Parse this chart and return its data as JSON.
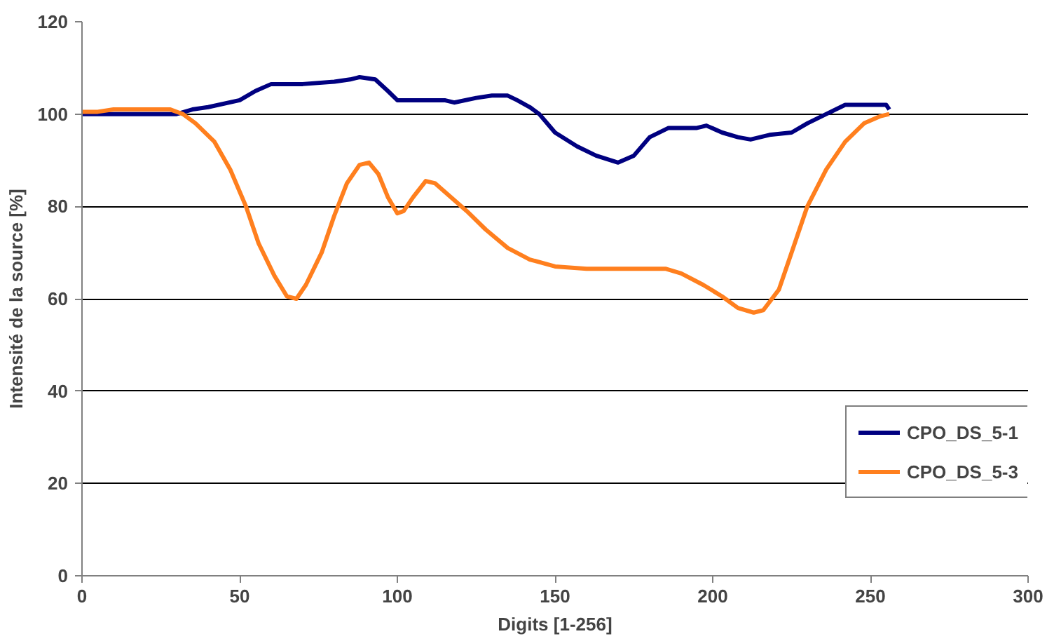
{
  "chart_data": {
    "type": "line",
    "xlabel": "Digits [1-256]",
    "ylabel": "Intensité de la source [%]",
    "xlim": [
      0,
      300
    ],
    "xticks": [
      0,
      50,
      100,
      150,
      200,
      250,
      300
    ],
    "ylim": [
      0,
      120
    ],
    "yticks": [
      0,
      20,
      40,
      60,
      80,
      100,
      120
    ],
    "grid": "y",
    "legend": "right",
    "line_style": "solid",
    "marker": "none",
    "series": [
      {
        "name": "CPO_DS_5-1",
        "color": "#000080",
        "x": [
          0,
          10,
          20,
          30,
          35,
          40,
          50,
          55,
          60,
          70,
          80,
          85,
          88,
          93,
          97,
          100,
          110,
          115,
          118,
          125,
          130,
          135,
          138,
          142,
          145,
          150,
          157,
          163,
          170,
          175,
          180,
          186,
          195,
          198,
          203,
          208,
          212,
          218,
          225,
          230,
          236,
          242,
          250,
          255,
          256
        ],
        "values": [
          100,
          100,
          100,
          100,
          101,
          101.5,
          103,
          105,
          106.5,
          106.5,
          107,
          107.5,
          108,
          107.5,
          105,
          103,
          103,
          103,
          102.5,
          103.5,
          104,
          104,
          103,
          101.5,
          100,
          96,
          93,
          91,
          89.5,
          91,
          95,
          97,
          97,
          97.5,
          96,
          95,
          94.5,
          95.5,
          96,
          98,
          100,
          102,
          102,
          102,
          101
        ]
      },
      {
        "name": "CPO_DS_5-3",
        "color": "#ff7f1e",
        "x": [
          0,
          5,
          10,
          20,
          28,
          32,
          36,
          42,
          47,
          52,
          56,
          61,
          65,
          68,
          71,
          76,
          80,
          84,
          88,
          91,
          94,
          97,
          100,
          102,
          105,
          109,
          112,
          117,
          122,
          128,
          135,
          142,
          150,
          160,
          185,
          190,
          197,
          203,
          208,
          213,
          216,
          221,
          225,
          230,
          236,
          242,
          248,
          253,
          256
        ],
        "values": [
          100.5,
          100.5,
          101,
          101,
          101,
          100,
          98,
          94,
          88,
          80,
          72,
          65,
          60.5,
          60,
          63,
          70,
          78,
          85,
          89,
          89.5,
          87,
          82,
          78.5,
          79,
          82,
          85.5,
          85,
          82,
          79,
          75,
          71,
          68.5,
          67,
          66.5,
          66.5,
          65.5,
          63,
          60.5,
          58,
          57,
          57.5,
          62,
          70,
          80,
          88,
          94,
          98,
          99.5,
          100
        ]
      }
    ]
  }
}
